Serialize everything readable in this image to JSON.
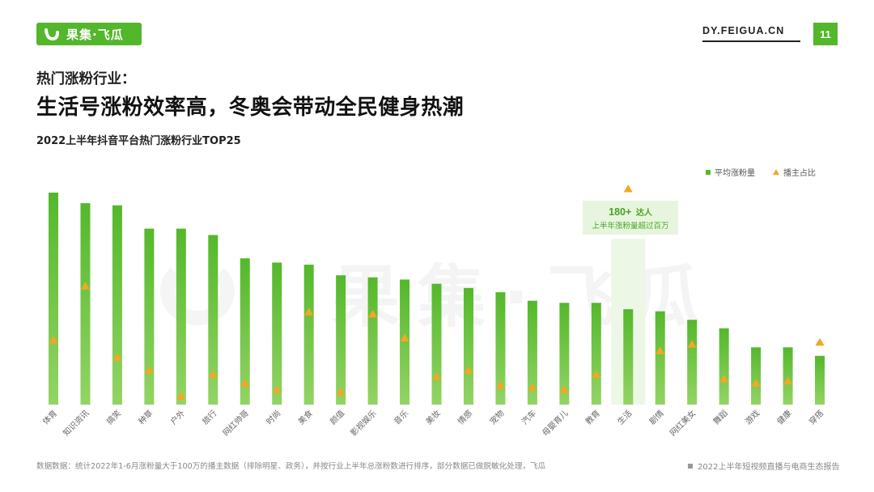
{
  "logo": {
    "text": "果集·飞瓜",
    "icon": "feigua-smile-icon"
  },
  "site": "DY.FEIGUA.CN",
  "page_number": "11",
  "section_heading": "热门涨粉行业：",
  "title": "生活号涨粉效率高，冬奥会带动全民健身热潮",
  "watermark": "果集·飞瓜",
  "colors": {
    "brand": "#52b72b",
    "bar_top": "#54b82b",
    "bar_bottom": "#93d465",
    "marker": "#f5a623",
    "highlight_bg": "#edf7e5"
  },
  "chart_data": {
    "type": "bar",
    "title": "2022上半年抖音平台热门涨粉行业TOP25",
    "categories": [
      "体育",
      "知识资讯",
      "搞笑",
      "种草",
      "户外",
      "旅行",
      "网红帅哥",
      "时尚",
      "美食",
      "颜值",
      "影视娱乐",
      "音乐",
      "美妆",
      "情感",
      "宠物",
      "汽车",
      "母婴育儿",
      "教育",
      "生活",
      "剧情",
      "网红美女",
      "舞蹈",
      "游戏",
      "健康",
      "穿搭"
    ],
    "series": [
      {
        "name": "平均涨粉量",
        "type": "bar",
        "color": "#54b82b",
        "values": [
          100,
          95,
          94,
          83,
          83,
          80,
          69,
          67,
          66,
          61,
          60,
          59,
          57,
          55,
          53,
          49,
          48,
          48,
          45,
          44,
          40,
          36,
          27,
          27,
          23
        ]
      },
      {
        "name": "播主占比",
        "type": "marker",
        "marker": "triangle",
        "color": "#f5a623",
        "values": [
          30,
          55,
          22,
          16,
          4,
          14,
          10,
          7,
          43,
          6,
          42,
          31,
          13,
          16,
          9,
          8,
          7,
          14,
          100,
          25,
          28,
          12,
          10,
          11,
          29
        ]
      }
    ],
    "legend": "top-right",
    "grid": false,
    "axes_visible": false,
    "highlight": {
      "category": "生活",
      "value": "180+",
      "unit": "达人",
      "note": "上半年涨粉量超过百万"
    }
  },
  "footer": {
    "source_note": "数据数据：统计2022年1-6月涨粉量大于100万的播主数据（排除明星、政务），并按行业上半年总涨粉数进行排序，部分数据已做脱敏化处理，飞瓜",
    "report_name": "2022上半年短视频直播与电商生态报告"
  }
}
